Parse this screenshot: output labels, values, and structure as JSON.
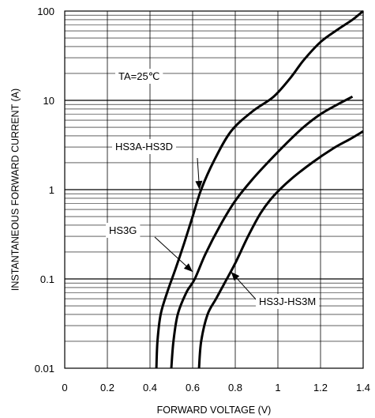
{
  "chart_data": {
    "type": "line",
    "title": "",
    "xlabel": "FORWARD VOLTAGE (V)",
    "ylabel": "INSTANTANEOUS FORWARD CURRENT (A)",
    "x_scale": "linear",
    "y_scale": "log",
    "xlim": [
      0,
      1.4
    ],
    "ylim": [
      0.01,
      100
    ],
    "x_ticks": [
      "0",
      "0.2",
      "0.4",
      "0.6",
      "0.8",
      "1",
      "1.2",
      "1.4"
    ],
    "y_ticks": [
      "0.01",
      "0.1",
      "1",
      "10",
      "100"
    ],
    "grid": true,
    "series": [
      {
        "name": "HS3A-HS3D",
        "points": [
          [
            0.43,
            0.01
          ],
          [
            0.435,
            0.02
          ],
          [
            0.45,
            0.04
          ],
          [
            0.48,
            0.07
          ],
          [
            0.52,
            0.13
          ],
          [
            0.56,
            0.25
          ],
          [
            0.6,
            0.5
          ],
          [
            0.64,
            1.0
          ],
          [
            0.7,
            2.1
          ],
          [
            0.78,
            4.5
          ],
          [
            0.88,
            7.5
          ],
          [
            0.98,
            11
          ],
          [
            1.06,
            18
          ],
          [
            1.12,
            28
          ],
          [
            1.2,
            45
          ],
          [
            1.28,
            62
          ],
          [
            1.35,
            80
          ],
          [
            1.4,
            100
          ]
        ]
      },
      {
        "name": "HS3G",
        "points": [
          [
            0.5,
            0.01
          ],
          [
            0.51,
            0.02
          ],
          [
            0.53,
            0.04
          ],
          [
            0.57,
            0.07
          ],
          [
            0.61,
            0.1
          ],
          [
            0.66,
            0.19
          ],
          [
            0.73,
            0.4
          ],
          [
            0.8,
            0.75
          ],
          [
            0.88,
            1.3
          ],
          [
            0.96,
            2.1
          ],
          [
            1.04,
            3.3
          ],
          [
            1.12,
            5.0
          ],
          [
            1.2,
            7.0
          ],
          [
            1.28,
            9.0
          ],
          [
            1.35,
            11
          ]
        ]
      },
      {
        "name": "HS3J-HS3M",
        "points": [
          [
            0.63,
            0.01
          ],
          [
            0.64,
            0.02
          ],
          [
            0.67,
            0.04
          ],
          [
            0.71,
            0.06
          ],
          [
            0.75,
            0.09
          ],
          [
            0.8,
            0.15
          ],
          [
            0.86,
            0.3
          ],
          [
            0.92,
            0.55
          ],
          [
            0.98,
            0.85
          ],
          [
            1.06,
            1.3
          ],
          [
            1.16,
            2.0
          ],
          [
            1.26,
            2.9
          ],
          [
            1.34,
            3.7
          ],
          [
            1.4,
            4.5
          ]
        ]
      }
    ],
    "annotations": [
      {
        "text": "TA=25℃",
        "target_series": ""
      },
      {
        "text": "HS3A-HS3D",
        "target_series": "HS3A-HS3D"
      },
      {
        "text": "HS3G",
        "target_series": "HS3G"
      },
      {
        "text": "HS3J-HS3M",
        "target_series": "HS3J-HS3M"
      }
    ]
  },
  "colors": {
    "background": "#ffffff",
    "grid": "#000000",
    "curve": "#000000",
    "text": "#000000"
  }
}
